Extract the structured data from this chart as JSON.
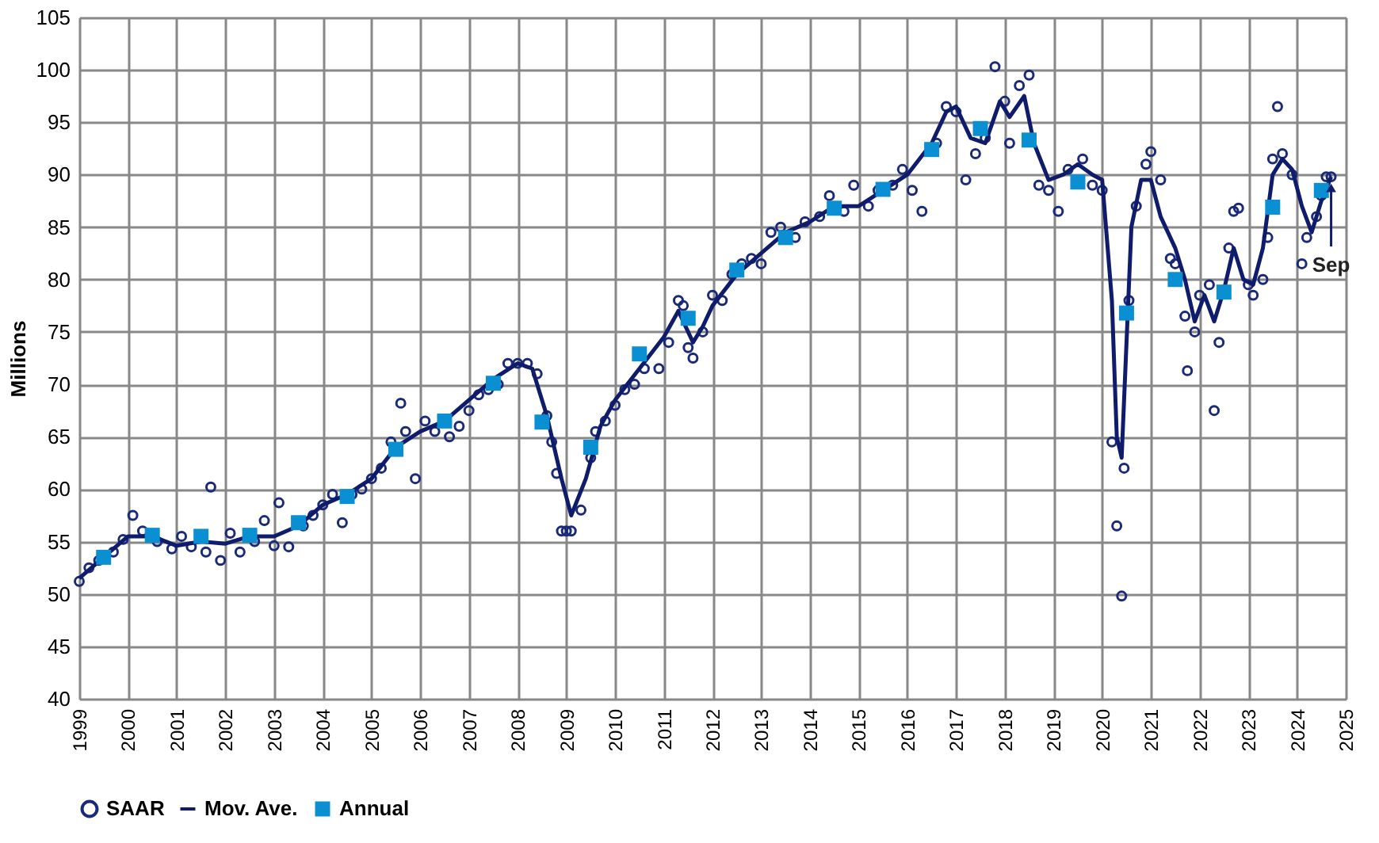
{
  "chart_data": {
    "type": "line",
    "ylabel": "Millions",
    "xlim": [
      1999,
      2025
    ],
    "xticks": [
      1999,
      2000,
      2001,
      2002,
      2003,
      2004,
      2005,
      2006,
      2007,
      2008,
      2009,
      2010,
      2011,
      2012,
      2013,
      2014,
      2015,
      2016,
      2017,
      2018,
      2019,
      2020,
      2021,
      2022,
      2023,
      2024,
      2025
    ],
    "ylim": [
      40,
      105
    ],
    "yticks": [
      40,
      45,
      50,
      55,
      60,
      65,
      70,
      75,
      80,
      85,
      90,
      95,
      100,
      105
    ],
    "grid": true,
    "legend": "bottom",
    "annotations": [
      {
        "text": "Sep",
        "x": 2024.7,
        "y": 89.8
      }
    ],
    "series": [
      {
        "name": "SAAR",
        "type": "scatter",
        "marker": "circle",
        "color": "#1a2a78",
        "x": [
          1999.0,
          1999.2,
          1999.4,
          1999.7,
          1999.9,
          2000.1,
          2000.3,
          2000.6,
          2000.9,
          2001.1,
          2001.3,
          2001.6,
          2001.7,
          2001.9,
          2002.1,
          2002.3,
          2002.6,
          2002.8,
          2003.0,
          2003.1,
          2003.3,
          2003.6,
          2003.8,
          2004.0,
          2004.2,
          2004.4,
          2004.6,
          2004.8,
          2005.0,
          2005.2,
          2005.4,
          2005.6,
          2005.7,
          2005.9,
          2006.1,
          2006.3,
          2006.6,
          2006.8,
          2007.0,
          2007.2,
          2007.4,
          2007.6,
          2007.8,
          2008.0,
          2008.2,
          2008.4,
          2008.6,
          2008.7,
          2008.8,
          2008.9,
          2009.0,
          2009.1,
          2009.3,
          2009.5,
          2009.6,
          2009.8,
          2010.0,
          2010.2,
          2010.4,
          2010.6,
          2010.9,
          2011.1,
          2011.3,
          2011.4,
          2011.5,
          2011.6,
          2011.8,
          2012.0,
          2012.2,
          2012.4,
          2012.6,
          2012.8,
          2013.0,
          2013.2,
          2013.4,
          2013.7,
          2013.9,
          2014.2,
          2014.4,
          2014.7,
          2014.9,
          2015.2,
          2015.4,
          2015.7,
          2015.9,
          2016.1,
          2016.3,
          2016.6,
          2016.8,
          2017.0,
          2017.2,
          2017.4,
          2017.6,
          2017.8,
          2018.0,
          2018.1,
          2018.3,
          2018.5,
          2018.7,
          2018.9,
          2019.1,
          2019.3,
          2019.6,
          2019.8,
          2020.0,
          2020.2,
          2020.3,
          2020.4,
          2020.45,
          2020.55,
          2020.7,
          2020.9,
          2021.0,
          2021.2,
          2021.4,
          2021.5,
          2021.7,
          2021.75,
          2021.9,
          2022.0,
          2022.2,
          2022.3,
          2022.4,
          2022.6,
          2022.7,
          2022.8,
          2023.0,
          2023.1,
          2023.3,
          2023.4,
          2023.5,
          2023.6,
          2023.7,
          2023.9,
          2024.1,
          2024.2,
          2024.4,
          2024.5,
          2024.6,
          2024.7
        ],
        "values": [
          51.2,
          52.5,
          53.2,
          54,
          55.2,
          57.5,
          56,
          55,
          54.3,
          55.5,
          54.5,
          54,
          60.2,
          53.2,
          55.8,
          54,
          55,
          57,
          54.6,
          58.7,
          54.5,
          56.5,
          57.5,
          58.5,
          59.5,
          56.8,
          59.5,
          60,
          61,
          62,
          64.5,
          68.2,
          65.5,
          61,
          66.5,
          65.5,
          65,
          66,
          67.5,
          69,
          69.5,
          70,
          72,
          72,
          72,
          71,
          67,
          64.5,
          61.5,
          56,
          56,
          56,
          58,
          63,
          65.5,
          66.5,
          68,
          69.5,
          70,
          71.5,
          71.5,
          74,
          78,
          77.5,
          73.5,
          72.5,
          75,
          78.5,
          78,
          80.5,
          81.5,
          82,
          81.5,
          84.5,
          85,
          84,
          85.5,
          86,
          88,
          86.5,
          89,
          87,
          88.5,
          89,
          90.5,
          88.5,
          86.5,
          93,
          96.5,
          96,
          89.5,
          92,
          93.5,
          100.3,
          97,
          93,
          98.5,
          99.5,
          89,
          88.5,
          86.5,
          90.5,
          91.5,
          89,
          88.5,
          64.5,
          56.5,
          49.8,
          62,
          78,
          87,
          91,
          92.2,
          89.5,
          82,
          81.5,
          76.5,
          71.3,
          75,
          78.5,
          79.5,
          67.5,
          74,
          83,
          86.5,
          86.8,
          79.5,
          78.5,
          80,
          84,
          91.5,
          96.5,
          92,
          90,
          81.5,
          84,
          86,
          88,
          89.8,
          89.8
        ]
      },
      {
        "name": "Mov. Ave.",
        "type": "line",
        "line_style": "solid",
        "color": "#0f1b6b",
        "x": [
          1999.0,
          1999.5,
          2000.0,
          2000.5,
          2001.0,
          2001.5,
          2002.0,
          2002.5,
          2003.0,
          2003.5,
          2004.0,
          2004.5,
          2005.0,
          2005.5,
          2006.0,
          2006.5,
          2007.0,
          2007.5,
          2008.0,
          2008.3,
          2008.6,
          2008.9,
          2009.1,
          2009.4,
          2009.7,
          2010.0,
          2010.5,
          2011.0,
          2011.3,
          2011.6,
          2011.8,
          2012.0,
          2012.5,
          2013.0,
          2013.5,
          2014.0,
          2014.5,
          2015.0,
          2015.5,
          2016.0,
          2016.5,
          2016.8,
          2017.0,
          2017.3,
          2017.6,
          2017.9,
          2018.1,
          2018.4,
          2018.6,
          2018.9,
          2019.2,
          2019.5,
          2019.8,
          2020.0,
          2020.2,
          2020.3,
          2020.4,
          2020.6,
          2020.8,
          2021.0,
          2021.2,
          2021.5,
          2021.7,
          2021.9,
          2022.1,
          2022.3,
          2022.5,
          2022.7,
          2022.9,
          2023.1,
          2023.3,
          2023.5,
          2023.7,
          2023.9,
          2024.1,
          2024.3,
          2024.5,
          2024.7
        ],
        "values": [
          51.5,
          53.5,
          55.5,
          55.5,
          54.6,
          55,
          54.8,
          55.5,
          55.5,
          56.5,
          58.5,
          59.5,
          61,
          64,
          65.5,
          66.5,
          68.5,
          70.5,
          72,
          71.5,
          67,
          61,
          57.5,
          61,
          66,
          68.5,
          71.5,
          74.5,
          77,
          74,
          75.5,
          77.5,
          80.5,
          82.5,
          84.5,
          85.5,
          87,
          87,
          88.5,
          90,
          93,
          96,
          96.5,
          93.5,
          93,
          97,
          95.5,
          97.5,
          93,
          89.5,
          90,
          91,
          90,
          89.5,
          78,
          65,
          63,
          85,
          89.5,
          89.5,
          86,
          83,
          80,
          76,
          78.5,
          76,
          79,
          83,
          80,
          79.5,
          83,
          90,
          91.5,
          90.5,
          87,
          84.5,
          87.5,
          89.8
        ]
      },
      {
        "name": "Annual",
        "type": "scatter",
        "marker": "square",
        "color": "#0b8fd3",
        "x": [
          1999.5,
          2000.5,
          2001.5,
          2002.5,
          2003.5,
          2004.5,
          2005.5,
          2006.5,
          2007.5,
          2008.5,
          2009.5,
          2010.5,
          2011.5,
          2012.5,
          2013.5,
          2014.5,
          2015.5,
          2016.5,
          2017.5,
          2018.5,
          2019.5,
          2020.5,
          2021.5,
          2022.5,
          2023.5,
          2024.5
        ],
        "values": [
          53.5,
          55.6,
          55.5,
          55.6,
          56.8,
          59.3,
          63.8,
          66.5,
          70.1,
          66.4,
          64.0,
          72.9,
          76.3,
          80.9,
          84.0,
          86.8,
          88.6,
          92.4,
          94.4,
          93.3,
          89.3,
          76.8,
          80.0,
          78.8,
          86.9,
          88.5
        ]
      }
    ]
  }
}
